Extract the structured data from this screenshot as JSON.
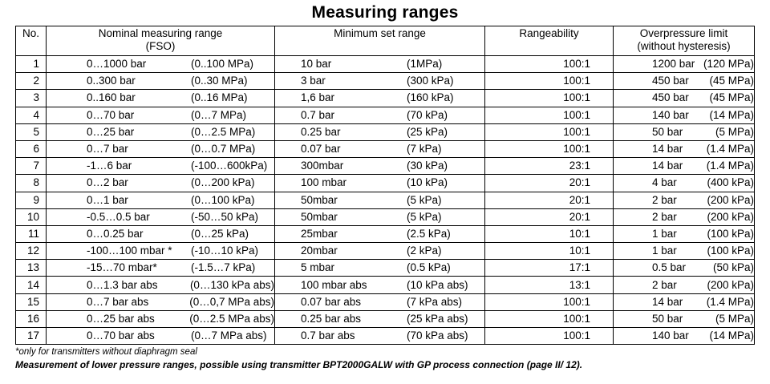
{
  "title": "Measuring ranges",
  "headers": {
    "no": "No.",
    "nominal_line1": "Nominal measuring range",
    "nominal_line2": "(FSO)",
    "minimum": "Minimum set range",
    "rangeability": "Rangeability",
    "overpressure_line1": "Overpressure limit",
    "overpressure_line2": "(without hysteresis)"
  },
  "rows": [
    {
      "no": "1",
      "nom_bar": "0…1000 bar",
      "nom_pa": "(0..100 MPa)",
      "min_bar": "10 bar",
      "min_pa": "(1MPa)",
      "range": "100:1",
      "ovr_bar": "1200 bar",
      "ovr_pa": "(120 MPa)"
    },
    {
      "no": "2",
      "nom_bar": "0..300 bar",
      "nom_pa": "(0..30 MPa)",
      "min_bar": "3 bar",
      "min_pa": "(300 kPa)",
      "range": "100:1",
      "ovr_bar": "450 bar",
      "ovr_pa": "(45 MPa)"
    },
    {
      "no": "3",
      "nom_bar": "0..160 bar",
      "nom_pa": "(0..16 MPa)",
      "min_bar": "1,6 bar",
      "min_pa": "(160 kPa)",
      "range": "100:1",
      "ovr_bar": "450 bar",
      "ovr_pa": "(45 MPa)"
    },
    {
      "no": "4",
      "nom_bar": "0…70 bar",
      "nom_pa": "(0…7 MPa)",
      "min_bar": "0.7 bar",
      "min_pa": "(70 kPa)",
      "range": "100:1",
      "ovr_bar": "140 bar",
      "ovr_pa": "(14 MPa)"
    },
    {
      "no": "5",
      "nom_bar": "0…25 bar",
      "nom_pa": "(0…2.5 MPa)",
      "min_bar": "0.25 bar",
      "min_pa": "(25 kPa)",
      "range": "100:1",
      "ovr_bar": "50 bar",
      "ovr_pa": "(5 MPa)"
    },
    {
      "no": "6",
      "nom_bar": "0…7 bar",
      "nom_pa": "(0…0.7 MPa)",
      "min_bar": "0.07 bar",
      "min_pa": "(7 kPa)",
      "range": "100:1",
      "ovr_bar": "14 bar",
      "ovr_pa": "(1.4 MPa)"
    },
    {
      "no": "7",
      "nom_bar": "-1…6 bar",
      "nom_pa": "(-100…600kPa)",
      "min_bar": "300mbar",
      "min_pa": "(30 kPa)",
      "range": "23:1",
      "ovr_bar": "14 bar",
      "ovr_pa": "(1.4 MPa)"
    },
    {
      "no": "8",
      "nom_bar": "0…2 bar",
      "nom_pa": "(0…200 kPa)",
      "min_bar": "100 mbar",
      "min_pa": "(10 kPa)",
      "range": "20:1",
      "ovr_bar": "4 bar",
      "ovr_pa": "(400 kPa)"
    },
    {
      "no": "9",
      "nom_bar": "0…1 bar",
      "nom_pa": "(0…100 kPa)",
      "min_bar": "50mbar",
      "min_pa": "(5 kPa)",
      "range": "20:1",
      "ovr_bar": "2 bar",
      "ovr_pa": "(200 kPa)"
    },
    {
      "no": "10",
      "nom_bar": "-0.5…0.5 bar",
      "nom_pa": "(-50…50 kPa)",
      "min_bar": "50mbar",
      "min_pa": "(5 kPa)",
      "range": "20:1",
      "ovr_bar": "2 bar",
      "ovr_pa": "(200 kPa)"
    },
    {
      "no": "11",
      "nom_bar": "0…0.25 bar",
      "nom_pa": "(0…25 kPa)",
      "min_bar": "25mbar",
      "min_pa": "(2.5 kPa)",
      "range": "10:1",
      "ovr_bar": "1 bar",
      "ovr_pa": "(100 kPa)"
    },
    {
      "no": "12",
      "nom_bar": "-100…100 mbar *",
      "nom_pa": "(-10…10 kPa)",
      "min_bar": "20mbar",
      "min_pa": "(2 kPa)",
      "range": "10:1",
      "ovr_bar": "1 bar",
      "ovr_pa": "(100 kPa)"
    },
    {
      "no": "13",
      "nom_bar": "-15…70 mbar*",
      "nom_pa": "(-1.5…7 kPa)",
      "min_bar": "5 mbar",
      "min_pa": "(0.5 kPa)",
      "range": "17:1",
      "ovr_bar": "0.5 bar",
      "ovr_pa": "(50 kPa)"
    },
    {
      "no": "14",
      "nom_bar": "0…1.3 bar abs",
      "nom_pa": "(0…130 kPa abs)",
      "min_bar": "100 mbar abs",
      "min_pa": "(10 kPa abs)",
      "range": "13:1",
      "ovr_bar": "2 bar",
      "ovr_pa": "(200 kPa)"
    },
    {
      "no": "15",
      "nom_bar": "0…7 bar abs",
      "nom_pa": "(0…0,7 MPa abs)",
      "min_bar": "0.07 bar abs",
      "min_pa": "(7 kPa abs)",
      "range": "100:1",
      "ovr_bar": "14 bar",
      "ovr_pa": "(1.4 MPa)"
    },
    {
      "no": "16",
      "nom_bar": "0…25 bar abs",
      "nom_pa": "(0…2.5 MPa abs)",
      "min_bar": "0.25 bar abs",
      "min_pa": "(25 kPa abs)",
      "range": "100:1",
      "ovr_bar": "50 bar",
      "ovr_pa": "(5 MPa)"
    },
    {
      "no": "17",
      "nom_bar": "0…70 bar abs",
      "nom_pa": "(0…7 MPa abs)",
      "min_bar": "0.7 bar abs",
      "min_pa": "(70 kPa abs)",
      "range": "100:1",
      "ovr_bar": "140 bar",
      "ovr_pa": "(14 MPa)"
    }
  ],
  "footnote": "*only for transmitters without diaphragm seal",
  "note": "Measurement of lower pressure ranges, possible  using transmitter BPT2000GALW with GP process connection (page II/ 12)."
}
